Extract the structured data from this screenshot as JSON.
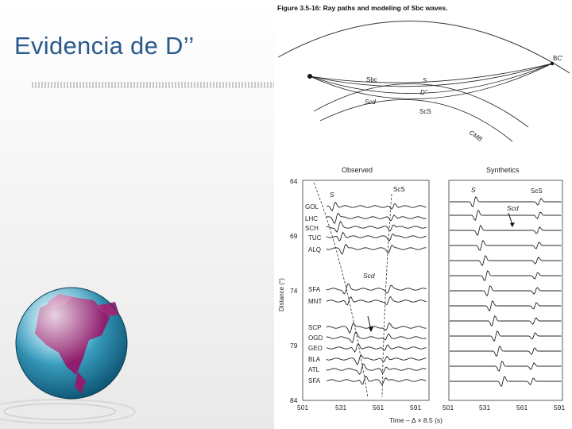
{
  "slide": {
    "title": "Evidencia de D’’"
  },
  "figure": {
    "caption": "Figure 3.5-16: Ray paths and modeling of Sbc waves.",
    "ray_diagram": {
      "labels": {
        "bc": "BC'",
        "sbc": "Sbc",
        "s": "S",
        "d2": "D''",
        "scd": "Scd",
        "scs": "ScS",
        "cmb": "CMB"
      }
    },
    "observed_panel": {
      "title": "Observed",
      "phase_labels": {
        "s": "S",
        "scs": "ScS",
        "scd": "Scd"
      },
      "stations": [
        "GOL",
        "LHC",
        "SCH",
        "TUC",
        "ALQ",
        "SFA",
        "MNT",
        "SCP",
        "OGD",
        "GEO",
        "BLA",
        "ATL",
        "SFA"
      ],
      "y_ticks": [
        "64",
        "69",
        "74",
        "79",
        "84"
      ],
      "x_ticks": [
        "501",
        "531",
        "561",
        "591"
      ],
      "y_axis_label": "Distance (°)",
      "x_axis_label": "Time – Δ × 8.5 (s)"
    },
    "synthetic_panel": {
      "title": "Synthetics",
      "phase_labels": {
        "s": "S",
        "scs": "ScS",
        "scd": "Scd"
      },
      "x_ticks": [
        "501",
        "531",
        "561",
        "591"
      ]
    }
  }
}
